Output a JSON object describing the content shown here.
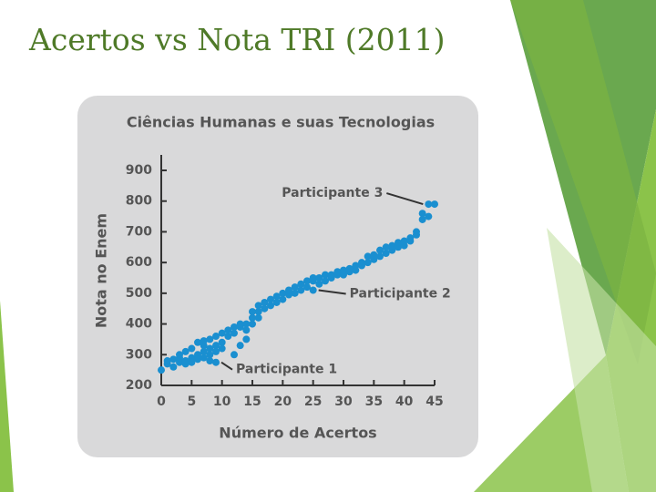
{
  "slide_title": "Acertos vs Nota TRI (2011)",
  "chart_data": {
    "type": "scatter",
    "title": "Ciências Humanas e suas Tecnologias",
    "x_label": "Número de Acertos",
    "y_label": "Nota no Enem",
    "color": "#1a8fd0",
    "x": [
      0,
      1,
      1,
      2,
      2,
      3,
      3,
      3,
      4,
      4,
      4,
      5,
      5,
      5,
      6,
      6,
      6,
      7,
      7,
      7,
      7,
      8,
      8,
      8,
      8,
      9,
      9,
      9,
      9,
      10,
      10,
      10,
      11,
      11,
      12,
      12,
      12,
      13,
      13,
      13,
      14,
      14,
      14,
      15,
      15,
      15,
      16,
      16,
      16,
      17,
      17,
      18,
      18,
      19,
      19,
      20,
      20,
      21,
      21,
      22,
      22,
      23,
      23,
      24,
      24,
      25,
      25,
      25,
      26,
      26,
      27,
      27,
      28,
      28,
      29,
      29,
      30,
      30,
      31,
      31,
      32,
      32,
      33,
      33,
      34,
      34,
      35,
      35,
      36,
      36,
      37,
      37,
      38,
      38,
      39,
      39,
      40,
      40,
      41,
      41,
      42,
      42,
      43,
      43,
      44,
      44,
      45
    ],
    "values": [
      250,
      280,
      270,
      260,
      285,
      275,
      290,
      300,
      280,
      310,
      270,
      290,
      320,
      275,
      300,
      340,
      285,
      310,
      330,
      290,
      345,
      320,
      350,
      300,
      280,
      330,
      360,
      310,
      275,
      340,
      320,
      370,
      360,
      380,
      370,
      390,
      300,
      390,
      400,
      330,
      400,
      380,
      350,
      420,
      440,
      400,
      440,
      460,
      420,
      450,
      470,
      460,
      480,
      470,
      490,
      480,
      500,
      495,
      510,
      500,
      520,
      510,
      530,
      520,
      540,
      510,
      540,
      550,
      530,
      550,
      540,
      560,
      550,
      560,
      560,
      570,
      560,
      575,
      570,
      580,
      575,
      590,
      590,
      600,
      600,
      620,
      610,
      625,
      620,
      640,
      630,
      650,
      640,
      655,
      650,
      665,
      655,
      670,
      670,
      680,
      690,
      700,
      740,
      760,
      750,
      790,
      790
    ],
    "xlim": [
      0,
      45
    ],
    "xticks": [
      0,
      5,
      10,
      15,
      20,
      25,
      30,
      35,
      40,
      45
    ],
    "ylim": [
      200,
      900
    ],
    "yticks": [
      200,
      300,
      400,
      500,
      600,
      700,
      800,
      900
    ],
    "annotations": [
      {
        "text": "Participante 1",
        "x": 9,
        "y": 275
      },
      {
        "text": "Participante 2",
        "x": 25,
        "y": 510
      },
      {
        "text": "Participante 3",
        "x": 44,
        "y": 790
      }
    ]
  }
}
